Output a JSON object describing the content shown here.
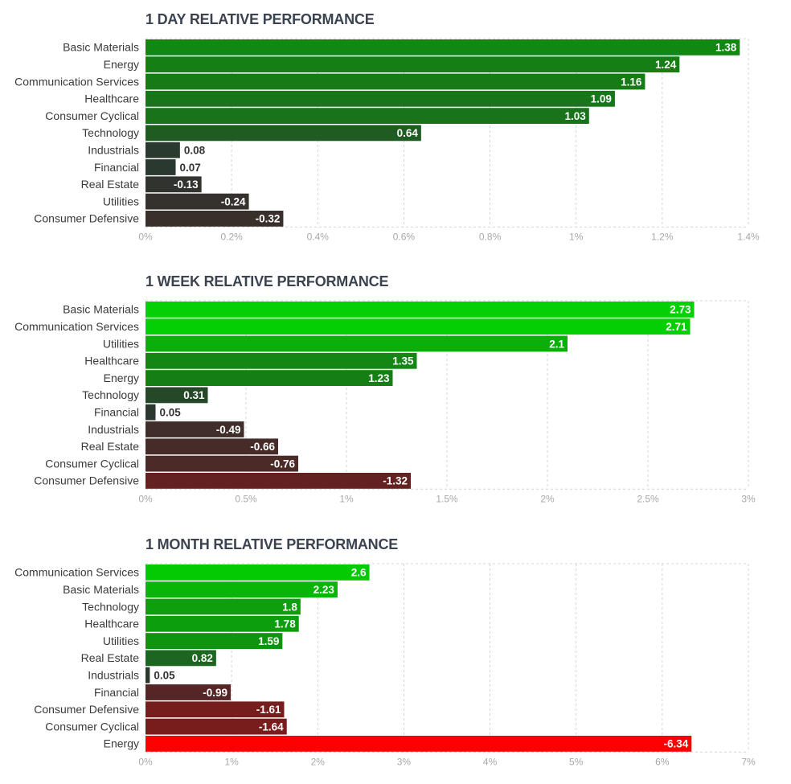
{
  "chart_data": [
    {
      "type": "bar",
      "orientation": "horizontal",
      "title": "1 DAY RELATIVE PERFORMANCE",
      "categories": [
        "Basic Materials",
        "Energy",
        "Communication Services",
        "Healthcare",
        "Consumer Cyclical",
        "Technology",
        "Industrials",
        "Financial",
        "Real Estate",
        "Utilities",
        "Consumer Defensive"
      ],
      "values": [
        1.38,
        1.24,
        1.16,
        1.09,
        1.03,
        0.64,
        0.08,
        0.07,
        -0.13,
        -0.24,
        -0.32
      ],
      "value_labels": [
        "1.38",
        "1.24",
        "1.16",
        "1.09",
        "1.03",
        "0.64",
        "0.08",
        "0.07",
        "-0.13",
        "-0.24",
        "-0.32"
      ],
      "xlim": [
        0,
        1.4
      ],
      "xticks": [
        "0%",
        "0.2%",
        "0.4%",
        "0.6%",
        "0.8%",
        "1%",
        "1.2%",
        "1.4%"
      ],
      "xlabel": "",
      "ylabel": "",
      "bar_magnitude": "absolute value"
    },
    {
      "type": "bar",
      "orientation": "horizontal",
      "title": "1 WEEK RELATIVE PERFORMANCE",
      "categories": [
        "Basic Materials",
        "Communication Services",
        "Utilities",
        "Healthcare",
        "Energy",
        "Technology",
        "Financial",
        "Industrials",
        "Real Estate",
        "Consumer Cyclical",
        "Consumer Defensive"
      ],
      "values": [
        2.73,
        2.71,
        2.1,
        1.35,
        1.23,
        0.31,
        0.05,
        -0.49,
        -0.66,
        -0.76,
        -1.32
      ],
      "value_labels": [
        "2.73",
        "2.71",
        "2.1",
        "1.35",
        "1.23",
        "0.31",
        "0.05",
        "-0.49",
        "-0.66",
        "-0.76",
        "-1.32"
      ],
      "xlim": [
        0,
        3
      ],
      "xticks": [
        "0%",
        "0.5%",
        "1%",
        "1.5%",
        "2%",
        "2.5%",
        "3%"
      ],
      "xlabel": "",
      "ylabel": "",
      "bar_magnitude": "absolute value"
    },
    {
      "type": "bar",
      "orientation": "horizontal",
      "title": "1 MONTH RELATIVE PERFORMANCE",
      "categories": [
        "Communication Services",
        "Basic Materials",
        "Technology",
        "Healthcare",
        "Utilities",
        "Real Estate",
        "Industrials",
        "Financial",
        "Consumer Defensive",
        "Consumer Cyclical",
        "Energy"
      ],
      "values": [
        2.6,
        2.23,
        1.8,
        1.78,
        1.59,
        0.82,
        0.05,
        -0.99,
        -1.61,
        -1.64,
        -6.34
      ],
      "value_labels": [
        "2.6",
        "2.23",
        "1.8",
        "1.78",
        "1.59",
        "0.82",
        "0.05",
        "-0.99",
        "-1.61",
        "-1.64",
        "-6.34"
      ],
      "xlim": [
        0,
        7
      ],
      "xticks": [
        "0%",
        "1%",
        "2%",
        "3%",
        "4%",
        "5%",
        "6%",
        "7%"
      ],
      "xlabel": "",
      "ylabel": "",
      "bar_magnitude": "absolute value"
    }
  ],
  "colors": {
    "positive_max": "#00e000",
    "positive_mid": "#108f10",
    "neutral": "#2b3530",
    "negative_mid": "#6b1f1f",
    "negative_max": "#ff0000",
    "title_text": "#3b4350",
    "grid": "#d4d4d4"
  }
}
